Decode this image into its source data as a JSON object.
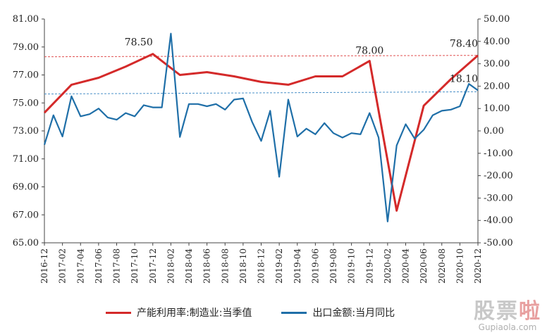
{
  "chart_data": {
    "type": "line",
    "title": "",
    "x": [
      "2016-12",
      "2017-01",
      "2017-02",
      "2017-03",
      "2017-04",
      "2017-05",
      "2017-06",
      "2017-07",
      "2017-08",
      "2017-09",
      "2017-10",
      "2017-11",
      "2017-12",
      "2018-01",
      "2018-02",
      "2018-03",
      "2018-04",
      "2018-05",
      "2018-06",
      "2018-07",
      "2018-08",
      "2018-09",
      "2018-10",
      "2018-11",
      "2018-12",
      "2019-01",
      "2019-02",
      "2019-03",
      "2019-04",
      "2019-05",
      "2019-06",
      "2019-07",
      "2019-08",
      "2019-09",
      "2019-10",
      "2019-11",
      "2019-12",
      "2020-01",
      "2020-02",
      "2020-03",
      "2020-04",
      "2020-05",
      "2020-06",
      "2020-07",
      "2020-08",
      "2020-09",
      "2020-10",
      "2020-11",
      "2020-12"
    ],
    "x_tick_labels": [
      "2016-12",
      "2017-02",
      "2017-04",
      "2017-06",
      "2017-08",
      "2017-10",
      "2017-12",
      "2018-02",
      "2018-04",
      "2018-06",
      "2018-08",
      "2018-10",
      "2018-12",
      "2019-02",
      "2019-04",
      "2019-06",
      "2019-08",
      "2019-10",
      "2019-12",
      "2020-02",
      "2020-04",
      "2020-06",
      "2020-08",
      "2020-10",
      "2020-12"
    ],
    "y_left": {
      "ylim": [
        65,
        81
      ],
      "ticks": [
        "81.00",
        "79.00",
        "77.00",
        "75.00",
        "73.00",
        "71.00",
        "69.00",
        "67.00",
        "65.00"
      ]
    },
    "y_right": {
      "ylim": [
        -50,
        50
      ],
      "ticks": [
        "50.00",
        "40.00",
        "30.00",
        "20.00",
        "10.00",
        "0.00",
        "-10.00",
        "-20.00",
        "-30.00",
        "-40.00",
        "-50.00"
      ]
    },
    "series": [
      {
        "name": "产能利用率:制造业:当季值",
        "axis": "left",
        "color": "#d42a2a",
        "points": [
          {
            "x": "2016-12",
            "y": 74.3
          },
          {
            "x": "2017-03",
            "y": 76.3
          },
          {
            "x": "2017-06",
            "y": 76.8
          },
          {
            "x": "2017-09",
            "y": 77.6
          },
          {
            "x": "2017-12",
            "y": 78.5
          },
          {
            "x": "2018-03",
            "y": 77.0
          },
          {
            "x": "2018-06",
            "y": 77.2
          },
          {
            "x": "2018-09",
            "y": 76.9
          },
          {
            "x": "2018-12",
            "y": 76.5
          },
          {
            "x": "2019-03",
            "y": 76.3
          },
          {
            "x": "2019-06",
            "y": 76.9
          },
          {
            "x": "2019-09",
            "y": 76.9
          },
          {
            "x": "2019-12",
            "y": 78.0
          },
          {
            "x": "2020-03",
            "y": 67.3
          },
          {
            "x": "2020-06",
            "y": 74.8
          },
          {
            "x": "2020-09",
            "y": 76.7
          },
          {
            "x": "2020-12",
            "y": 78.4
          }
        ]
      },
      {
        "name": "出口金额:当月同比",
        "axis": "right",
        "color": "#1f6fa8",
        "points": [
          {
            "x": "2016-12",
            "y": -6.2
          },
          {
            "x": "2017-01",
            "y": 7.0
          },
          {
            "x": "2017-02",
            "y": -2.5
          },
          {
            "x": "2017-03",
            "y": 15.5
          },
          {
            "x": "2017-04",
            "y": 6.5
          },
          {
            "x": "2017-05",
            "y": 7.5
          },
          {
            "x": "2017-06",
            "y": 10.0
          },
          {
            "x": "2017-07",
            "y": 6.0
          },
          {
            "x": "2017-08",
            "y": 5.0
          },
          {
            "x": "2017-09",
            "y": 8.0
          },
          {
            "x": "2017-10",
            "y": 6.5
          },
          {
            "x": "2017-11",
            "y": 11.5
          },
          {
            "x": "2017-12",
            "y": 10.5
          },
          {
            "x": "2018-01",
            "y": 10.5
          },
          {
            "x": "2018-02",
            "y": 43.5
          },
          {
            "x": "2018-03",
            "y": -2.7
          },
          {
            "x": "2018-04",
            "y": 12.0
          },
          {
            "x": "2018-05",
            "y": 12.0
          },
          {
            "x": "2018-06",
            "y": 11.0
          },
          {
            "x": "2018-07",
            "y": 12.0
          },
          {
            "x": "2018-08",
            "y": 9.5
          },
          {
            "x": "2018-09",
            "y": 14.0
          },
          {
            "x": "2018-10",
            "y": 14.5
          },
          {
            "x": "2018-11",
            "y": 4.0
          },
          {
            "x": "2018-12",
            "y": -4.5
          },
          {
            "x": "2019-01",
            "y": 9.0
          },
          {
            "x": "2019-02",
            "y": -20.5
          },
          {
            "x": "2019-03",
            "y": 14.0
          },
          {
            "x": "2019-04",
            "y": -2.5
          },
          {
            "x": "2019-05",
            "y": 1.0
          },
          {
            "x": "2019-06",
            "y": -1.5
          },
          {
            "x": "2019-07",
            "y": 3.5
          },
          {
            "x": "2019-08",
            "y": -1.0
          },
          {
            "x": "2019-09",
            "y": -3.0
          },
          {
            "x": "2019-10",
            "y": -1.0
          },
          {
            "x": "2019-11",
            "y": -1.5
          },
          {
            "x": "2019-12",
            "y": 8.0
          },
          {
            "x": "2020-01",
            "y": -3.0
          },
          {
            "x": "2020-02",
            "y": -40.5
          },
          {
            "x": "2020-03",
            "y": -6.5
          },
          {
            "x": "2020-04",
            "y": 3.0
          },
          {
            "x": "2020-05",
            "y": -3.5
          },
          {
            "x": "2020-06",
            "y": 0.5
          },
          {
            "x": "2020-07",
            "y": 7.0
          },
          {
            "x": "2020-08",
            "y": 9.0
          },
          {
            "x": "2020-09",
            "y": 9.5
          },
          {
            "x": "2020-10",
            "y": 11.0
          },
          {
            "x": "2020-11",
            "y": 21.0
          },
          {
            "x": "2020-12",
            "y": 18.1
          }
        ]
      }
    ],
    "reference_lines": [
      {
        "axis": "left",
        "from": {
          "x": "2016-12",
          "y": 78.3
        },
        "to": {
          "x": "2020-12",
          "y": 78.4
        },
        "color": "#e05050",
        "style": "dashed"
      },
      {
        "axis": "right",
        "from": {
          "x": "2016-12",
          "y": 16.5
        },
        "to": {
          "x": "2020-12",
          "y": 17.5
        },
        "color": "#4a90c8",
        "style": "dashed"
      }
    ],
    "annotations": [
      {
        "text": "78.50",
        "x": "2017-12",
        "axis": "left",
        "y": 78.5,
        "anchor": "end",
        "dy": -12
      },
      {
        "text": "78.00",
        "x": "2019-12",
        "axis": "left",
        "y": 78.0,
        "anchor": "middle",
        "dy": -10
      },
      {
        "text": "78.40",
        "x": "2020-12",
        "axis": "left",
        "y": 78.4,
        "anchor": "end",
        "dy": -12
      },
      {
        "text": "18.10",
        "x": "2020-12",
        "axis": "right",
        "y": 18.1,
        "anchor": "end",
        "dy": -12
      }
    ],
    "legend": "bottom",
    "grid": false
  },
  "watermark": {
    "text_gray": "股票",
    "text_accent": "啦",
    "url": "Gupiaola.com"
  }
}
